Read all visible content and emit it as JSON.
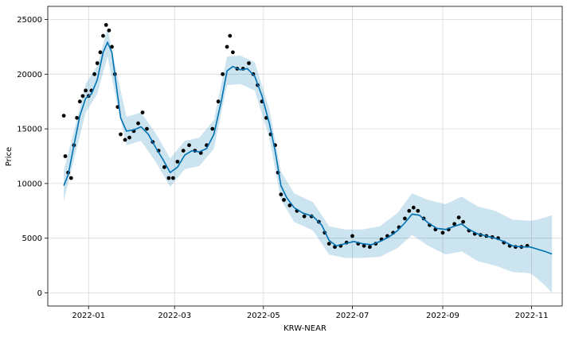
{
  "chart_data": {
    "type": "line",
    "title": "",
    "xlabel": "KRW-NEAR",
    "ylabel": "Price",
    "grid": true,
    "legend": "none",
    "x_range": [
      "2021-12-04",
      "2022-11-22"
    ],
    "y_range": [
      -1200,
      26200
    ],
    "x_ticks": [
      {
        "date": "2022-01-01",
        "label": "2022-01"
      },
      {
        "date": "2022-03-01",
        "label": "2022-03"
      },
      {
        "date": "2022-05-01",
        "label": "2022-05"
      },
      {
        "date": "2022-07-01",
        "label": "2022-07"
      },
      {
        "date": "2022-09-01",
        "label": "2022-09"
      },
      {
        "date": "2022-11-01",
        "label": "2022-11"
      }
    ],
    "y_ticks": [
      0,
      5000,
      10000,
      15000,
      20000,
      25000
    ],
    "colors": {
      "observed": "#000000",
      "forecast": "#0072B2",
      "uncertainty": "#0072B2"
    },
    "series": [
      {
        "role": "observed",
        "marker": "dot",
        "points": [
          [
            "2021-12-15",
            16200
          ],
          [
            "2021-12-16",
            12500
          ],
          [
            "2021-12-18",
            11000
          ],
          [
            "2021-12-20",
            10500
          ],
          [
            "2021-12-22",
            13500
          ],
          [
            "2021-12-24",
            16000
          ],
          [
            "2021-12-26",
            17500
          ],
          [
            "2021-12-28",
            18000
          ],
          [
            "2021-12-30",
            18500
          ],
          [
            "2022-01-01",
            18000
          ],
          [
            "2022-01-03",
            18500
          ],
          [
            "2022-01-05",
            20000
          ],
          [
            "2022-01-07",
            21000
          ],
          [
            "2022-01-09",
            22000
          ],
          [
            "2022-01-11",
            23500
          ],
          [
            "2022-01-13",
            24500
          ],
          [
            "2022-01-15",
            24000
          ],
          [
            "2022-01-17",
            22500
          ],
          [
            "2022-01-19",
            20000
          ],
          [
            "2022-01-21",
            17000
          ],
          [
            "2022-01-23",
            14500
          ],
          [
            "2022-01-26",
            14000
          ],
          [
            "2022-01-29",
            14200
          ],
          [
            "2022-02-01",
            14800
          ],
          [
            "2022-02-04",
            15500
          ],
          [
            "2022-02-07",
            16500
          ],
          [
            "2022-02-10",
            15000
          ],
          [
            "2022-02-14",
            13800
          ],
          [
            "2022-02-18",
            13000
          ],
          [
            "2022-02-22",
            11500
          ],
          [
            "2022-02-25",
            10500
          ],
          [
            "2022-02-28",
            10500
          ],
          [
            "2022-03-03",
            12000
          ],
          [
            "2022-03-07",
            13000
          ],
          [
            "2022-03-11",
            13500
          ],
          [
            "2022-03-15",
            13000
          ],
          [
            "2022-03-19",
            12800
          ],
          [
            "2022-03-23",
            13500
          ],
          [
            "2022-03-27",
            15000
          ],
          [
            "2022-03-31",
            17500
          ],
          [
            "2022-04-03",
            20000
          ],
          [
            "2022-04-06",
            22500
          ],
          [
            "2022-04-08",
            23500
          ],
          [
            "2022-04-10",
            22000
          ],
          [
            "2022-04-13",
            20500
          ],
          [
            "2022-04-17",
            20500
          ],
          [
            "2022-04-21",
            21000
          ],
          [
            "2022-04-24",
            20000
          ],
          [
            "2022-04-27",
            19000
          ],
          [
            "2022-04-30",
            17500
          ],
          [
            "2022-05-03",
            16000
          ],
          [
            "2022-05-06",
            14500
          ],
          [
            "2022-05-09",
            13500
          ],
          [
            "2022-05-11",
            11000
          ],
          [
            "2022-05-13",
            9000
          ],
          [
            "2022-05-15",
            8500
          ],
          [
            "2022-05-19",
            8000
          ],
          [
            "2022-05-24",
            7500
          ],
          [
            "2022-05-29",
            7000
          ],
          [
            "2022-06-03",
            7000
          ],
          [
            "2022-06-08",
            6500
          ],
          [
            "2022-06-12",
            5500
          ],
          [
            "2022-06-15",
            4500
          ],
          [
            "2022-06-19",
            4200
          ],
          [
            "2022-06-23",
            4300
          ],
          [
            "2022-06-27",
            4600
          ],
          [
            "2022-07-01",
            5200
          ],
          [
            "2022-07-05",
            4500
          ],
          [
            "2022-07-09",
            4300
          ],
          [
            "2022-07-13",
            4200
          ],
          [
            "2022-07-17",
            4500
          ],
          [
            "2022-07-21",
            4900
          ],
          [
            "2022-07-25",
            5200
          ],
          [
            "2022-07-29",
            5500
          ],
          [
            "2022-08-02",
            6000
          ],
          [
            "2022-08-06",
            6800
          ],
          [
            "2022-08-09",
            7500
          ],
          [
            "2022-08-12",
            7800
          ],
          [
            "2022-08-15",
            7500
          ],
          [
            "2022-08-19",
            6800
          ],
          [
            "2022-08-23",
            6200
          ],
          [
            "2022-08-27",
            5800
          ],
          [
            "2022-09-01",
            5500
          ],
          [
            "2022-09-05",
            5800
          ],
          [
            "2022-09-09",
            6300
          ],
          [
            "2022-09-12",
            6900
          ],
          [
            "2022-09-15",
            6500
          ],
          [
            "2022-09-19",
            5700
          ],
          [
            "2022-09-23",
            5400
          ],
          [
            "2022-09-27",
            5300
          ],
          [
            "2022-10-01",
            5200
          ],
          [
            "2022-10-05",
            5100
          ],
          [
            "2022-10-09",
            5000
          ],
          [
            "2022-10-13",
            4600
          ],
          [
            "2022-10-17",
            4300
          ],
          [
            "2022-10-21",
            4200
          ],
          [
            "2022-10-25",
            4200
          ],
          [
            "2022-10-29",
            4300
          ]
        ]
      },
      {
        "role": "forecast",
        "marker": "line",
        "points": [
          [
            "2021-12-15",
            9800
          ],
          [
            "2021-12-18",
            10800
          ],
          [
            "2021-12-22",
            13500
          ],
          [
            "2021-12-26",
            16200
          ],
          [
            "2021-12-30",
            17800
          ],
          [
            "2022-01-03",
            18200
          ],
          [
            "2022-01-07",
            19500
          ],
          [
            "2022-01-11",
            22000
          ],
          [
            "2022-01-14",
            22900
          ],
          [
            "2022-01-17",
            22000
          ],
          [
            "2022-01-20",
            19000
          ],
          [
            "2022-01-23",
            16000
          ],
          [
            "2022-01-27",
            14800
          ],
          [
            "2022-02-01",
            14900
          ],
          [
            "2022-02-06",
            15200
          ],
          [
            "2022-02-11",
            14500
          ],
          [
            "2022-02-16",
            13300
          ],
          [
            "2022-02-21",
            12200
          ],
          [
            "2022-02-26",
            11000
          ],
          [
            "2022-03-03",
            11500
          ],
          [
            "2022-03-08",
            12600
          ],
          [
            "2022-03-13",
            13000
          ],
          [
            "2022-03-18",
            12900
          ],
          [
            "2022-03-23",
            13200
          ],
          [
            "2022-03-28",
            14500
          ],
          [
            "2022-04-02",
            17500
          ],
          [
            "2022-04-06",
            20300
          ],
          [
            "2022-04-10",
            20700
          ],
          [
            "2022-04-15",
            20400
          ],
          [
            "2022-04-20",
            20500
          ],
          [
            "2022-04-25",
            19800
          ],
          [
            "2022-04-30",
            18000
          ],
          [
            "2022-05-05",
            15500
          ],
          [
            "2022-05-09",
            13000
          ],
          [
            "2022-05-13",
            9800
          ],
          [
            "2022-05-17",
            8700
          ],
          [
            "2022-05-22",
            7800
          ],
          [
            "2022-05-28",
            7300
          ],
          [
            "2022-06-04",
            7000
          ],
          [
            "2022-06-10",
            6200
          ],
          [
            "2022-06-15",
            4800
          ],
          [
            "2022-06-20",
            4300
          ],
          [
            "2022-06-26",
            4500
          ],
          [
            "2022-07-02",
            4700
          ],
          [
            "2022-07-08",
            4500
          ],
          [
            "2022-07-14",
            4400
          ],
          [
            "2022-07-20",
            4700
          ],
          [
            "2022-07-26",
            5100
          ],
          [
            "2022-08-01",
            5700
          ],
          [
            "2022-08-06",
            6400
          ],
          [
            "2022-08-11",
            7200
          ],
          [
            "2022-08-16",
            7100
          ],
          [
            "2022-08-22",
            6400
          ],
          [
            "2022-08-28",
            5900
          ],
          [
            "2022-09-03",
            5800
          ],
          [
            "2022-09-09",
            6100
          ],
          [
            "2022-09-14",
            6300
          ],
          [
            "2022-09-19",
            5800
          ],
          [
            "2022-09-25",
            5400
          ],
          [
            "2022-10-01",
            5200
          ],
          [
            "2022-10-07",
            5000
          ],
          [
            "2022-10-13",
            4700
          ],
          [
            "2022-10-19",
            4300
          ],
          [
            "2022-10-25",
            4200
          ],
          [
            "2022-10-31",
            4200
          ],
          [
            "2022-11-05",
            4000
          ],
          [
            "2022-11-10",
            3800
          ],
          [
            "2022-11-15",
            3550
          ]
        ]
      },
      {
        "role": "uncertainty",
        "marker": "band",
        "points": [
          [
            "2021-12-15",
            8400,
            11200
          ],
          [
            "2021-12-22",
            12200,
            14800
          ],
          [
            "2021-12-30",
            16500,
            19100
          ],
          [
            "2022-01-07",
            18200,
            20800
          ],
          [
            "2022-01-14",
            21600,
            24200
          ],
          [
            "2022-01-20",
            17700,
            20300
          ],
          [
            "2022-01-27",
            13500,
            16100
          ],
          [
            "2022-02-06",
            13900,
            16500
          ],
          [
            "2022-02-16",
            12000,
            14600
          ],
          [
            "2022-02-26",
            9700,
            12300
          ],
          [
            "2022-03-08",
            11300,
            13900
          ],
          [
            "2022-03-18",
            11600,
            14200
          ],
          [
            "2022-03-28",
            13200,
            15800
          ],
          [
            "2022-04-06",
            19000,
            21600
          ],
          [
            "2022-04-15",
            19100,
            21700
          ],
          [
            "2022-04-25",
            18500,
            21100
          ],
          [
            "2022-05-05",
            14200,
            16800
          ],
          [
            "2022-05-13",
            8500,
            11100
          ],
          [
            "2022-05-22",
            6500,
            9100
          ],
          [
            "2022-06-04",
            5700,
            8300
          ],
          [
            "2022-06-15",
            3500,
            6100
          ],
          [
            "2022-06-26",
            3200,
            5800
          ],
          [
            "2022-07-08",
            3200,
            5800
          ],
          [
            "2022-07-20",
            3300,
            6100
          ],
          [
            "2022-08-01",
            4100,
            7300
          ],
          [
            "2022-08-11",
            5300,
            9100
          ],
          [
            "2022-08-22",
            4300,
            8500
          ],
          [
            "2022-09-03",
            3500,
            8100
          ],
          [
            "2022-09-14",
            3800,
            8800
          ],
          [
            "2022-09-25",
            2900,
            7900
          ],
          [
            "2022-10-07",
            2500,
            7500
          ],
          [
            "2022-10-19",
            1900,
            6700
          ],
          [
            "2022-10-31",
            1800,
            6600
          ],
          [
            "2022-11-05",
            1300,
            6700
          ],
          [
            "2022-11-10",
            700,
            6900
          ],
          [
            "2022-11-15",
            0,
            7100
          ]
        ]
      }
    ]
  }
}
